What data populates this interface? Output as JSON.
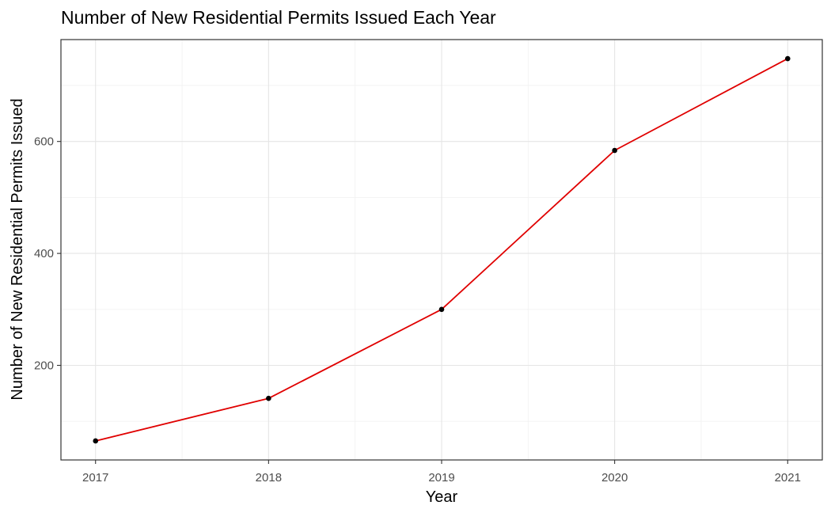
{
  "chart_data": {
    "type": "line",
    "title": "Number of New Residential Permits Issued Each Year",
    "xlabel": "Year",
    "ylabel": "Number of New Residential Permits Issued",
    "x": [
      2017,
      2018,
      2019,
      2020,
      2021
    ],
    "series": [
      {
        "values": [
          65,
          141,
          300,
          584,
          748
        ]
      }
    ],
    "xlim": [
      2016.8,
      2021.2
    ],
    "ylim": [
      31,
      782
    ],
    "x_ticks": [
      "2017",
      "2018",
      "2019",
      "2020",
      "2021"
    ],
    "y_ticks": [
      200,
      400,
      600
    ],
    "grid": true,
    "line_color": "#e00000",
    "point_color": "#000000"
  }
}
